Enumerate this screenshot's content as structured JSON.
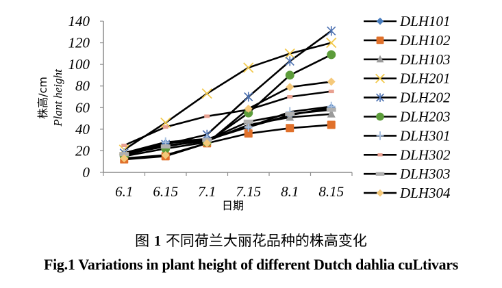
{
  "chart_data": {
    "type": "line",
    "title": "",
    "xlabel": "日期",
    "ylabel_cn": "株高/cm",
    "ylabel_en": "Plant height",
    "ylim": [
      0,
      140
    ],
    "yticks": [
      0,
      20,
      40,
      60,
      80,
      100,
      120,
      140
    ],
    "categories": [
      "6.1",
      "6.15",
      "7.1",
      "7.15",
      "8.1",
      "8.15"
    ],
    "grid": false,
    "legend_position": "right",
    "series": [
      {
        "name": "DLH101",
        "marker": "diamond",
        "color": "#4a7ebf",
        "values": [
          17,
          27,
          30,
          42,
          53,
          60
        ]
      },
      {
        "name": "DLH102",
        "marker": "square",
        "color": "#e0702a",
        "values": [
          12,
          15,
          27,
          36,
          41,
          44
        ]
      },
      {
        "name": "DLH103",
        "marker": "triangle",
        "color": "#9a9a9a",
        "values": [
          16,
          25,
          29,
          44,
          51,
          54
        ]
      },
      {
        "name": "DLH201",
        "marker": "x",
        "color": "#f2c94c",
        "values": [
          21,
          46,
          73,
          97,
          110,
          120
        ]
      },
      {
        "name": "DLH202",
        "marker": "star",
        "color": "#4a6fb0",
        "values": [
          18,
          26,
          35,
          70,
          103,
          131
        ]
      },
      {
        "name": "DLH203",
        "marker": "circle",
        "color": "#5c9c3a",
        "values": [
          15,
          22,
          28,
          55,
          90,
          109
        ]
      },
      {
        "name": "DLH301",
        "marker": "plus",
        "color": "#a8c0e0",
        "values": [
          18,
          28,
          31,
          42,
          56,
          61
        ]
      },
      {
        "name": "DLH302",
        "marker": "dash",
        "color": "#e8a090",
        "values": [
          25,
          42,
          52,
          58,
          70,
          75
        ]
      },
      {
        "name": "DLH303",
        "marker": "bar",
        "color": "#b0b0b0",
        "values": [
          17,
          24,
          30,
          47,
          54,
          58
        ]
      },
      {
        "name": "DLH304",
        "marker": "diamond",
        "color": "#f5c97a",
        "values": [
          13,
          16,
          27,
          59,
          79,
          84
        ]
      }
    ]
  },
  "caption": {
    "cn_prefix": "图",
    "cn_number": "1",
    "cn_text": "不同荷兰大丽花品种的株高变化",
    "en": "Fig.1 Variations in plant height of different Dutch dahlia cuLtivars"
  }
}
